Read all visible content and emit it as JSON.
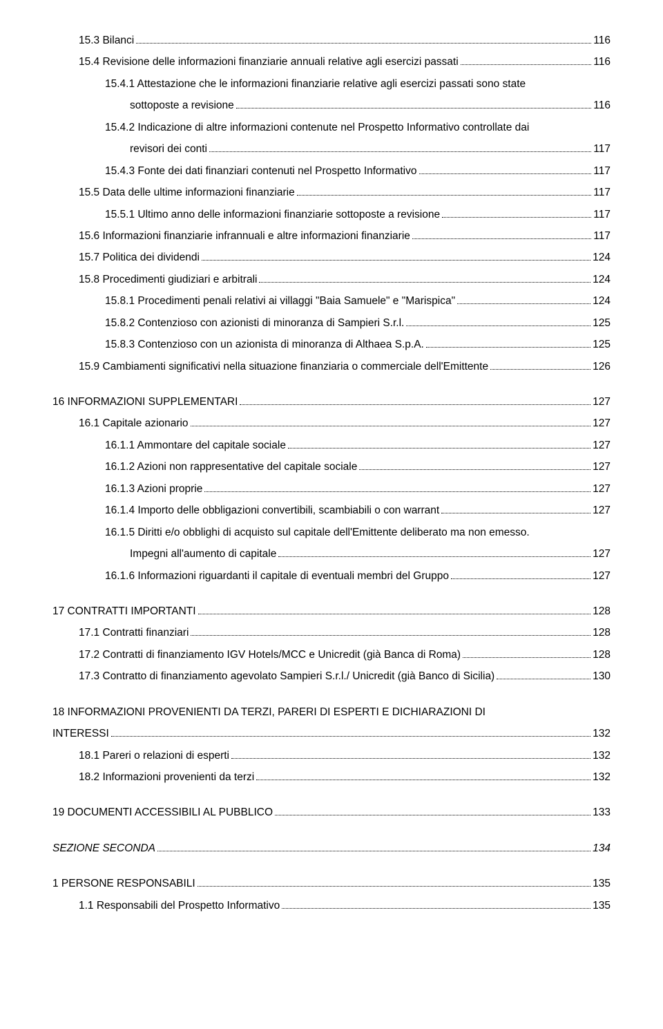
{
  "toc": [
    {
      "level": "l2",
      "label": "15.3  Bilanci",
      "page": "116"
    },
    {
      "level": "l2",
      "label": "15.4  Revisione delle informazioni finanziarie annuali relative agli esercizi passati",
      "page": "116"
    },
    {
      "level": "l3",
      "label": "15.4.1 Attestazione che le informazioni finanziarie relative agli esercizi passati sono state",
      "cont": true
    },
    {
      "level": "l3x",
      "label": "sottoposte a revisione",
      "page": "116"
    },
    {
      "level": "l3",
      "label": "15.4.2 Indicazione di altre informazioni contenute nel Prospetto Informativo controllate dai",
      "cont": true
    },
    {
      "level": "l3x",
      "label": "revisori dei conti",
      "page": "117"
    },
    {
      "level": "l3",
      "label": "15.4.3 Fonte dei dati finanziari contenuti nel Prospetto Informativo",
      "page": "117"
    },
    {
      "level": "l2",
      "label": "15.5  Data delle ultime informazioni finanziarie",
      "page": "117"
    },
    {
      "level": "l3",
      "label": "15.5.1 Ultimo anno delle informazioni finanziarie sottoposte a revisione",
      "page": "117"
    },
    {
      "level": "l2",
      "label": "15.6  Informazioni finanziarie infrannuali e altre informazioni finanziarie",
      "page": "117"
    },
    {
      "level": "l2",
      "label": "15.7  Politica dei dividendi",
      "page": "124"
    },
    {
      "level": "l2",
      "label": "15.8  Procedimenti giudiziari e arbitrali",
      "page": "124"
    },
    {
      "level": "l3",
      "label": "15.8.1 Procedimenti penali relativi ai villaggi \"Baia Samuele\" e \"Marispica\"",
      "page": "124"
    },
    {
      "level": "l3",
      "label": "15.8.2 Contenzioso con azionisti di minoranza di Sampieri S.r.l.",
      "page": "125"
    },
    {
      "level": "l3",
      "label": "15.8.3 Contenzioso con un azionista di minoranza di Althaea S.p.A.",
      "page": "125"
    },
    {
      "level": "l2",
      "label": "15.9  Cambiamenti significativi nella situazione finanziaria o commerciale dell'Emittente",
      "page": "126"
    },
    {
      "gap": true
    },
    {
      "level": "l1",
      "label": "16    INFORMAZIONI SUPPLEMENTARI",
      "page": "127"
    },
    {
      "level": "l2",
      "label": "16.1  Capitale azionario",
      "page": "127"
    },
    {
      "level": "l3",
      "label": "16.1.1 Ammontare del capitale sociale",
      "page": "127"
    },
    {
      "level": "l3",
      "label": "16.1.2 Azioni non rappresentative del capitale sociale",
      "page": "127"
    },
    {
      "level": "l3",
      "label": "16.1.3 Azioni proprie",
      "page": "127"
    },
    {
      "level": "l3",
      "label": "16.1.4 Importo delle obbligazioni convertibili, scambiabili o con warrant",
      "page": "127"
    },
    {
      "level": "l3",
      "label": "16.1.5 Diritti e/o obblighi di acquisto sul capitale dell'Emittente deliberato ma non emesso.",
      "cont": true
    },
    {
      "level": "l3x",
      "label": "Impegni all'aumento di capitale",
      "page": "127"
    },
    {
      "level": "l3",
      "label": "16.1.6 Informazioni riguardanti il capitale di eventuali membri del Gruppo",
      "page": "127"
    },
    {
      "gap": true
    },
    {
      "level": "l1",
      "label": "17    CONTRATTI IMPORTANTI",
      "page": "128"
    },
    {
      "level": "l2",
      "label": "17.1  Contratti finanziari",
      "page": "128"
    },
    {
      "level": "l2",
      "label": "17.2  Contratti di finanziamento IGV Hotels/MCC e Unicredit (già Banca di Roma)",
      "page": "128"
    },
    {
      "level": "l2",
      "label": "17.3  Contratto di finanziamento agevolato Sampieri S.r.l./ Unicredit (già Banco di Sicilia)",
      "page": "130"
    },
    {
      "gap": true
    },
    {
      "level": "l1",
      "label": "18    INFORMAZIONI PROVENIENTI DA TERZI, PARERI DI ESPERTI E DICHIARAZIONI DI",
      "cont": true
    },
    {
      "level": "l1",
      "label": "INTERESSI",
      "page": "132"
    },
    {
      "level": "l2",
      "label": "18.1  Pareri o relazioni di esperti",
      "page": "132"
    },
    {
      "level": "l2",
      "label": "18.2  Informazioni provenienti da terzi",
      "page": "132"
    },
    {
      "gap": true
    },
    {
      "level": "l1",
      "label": "19    DOCUMENTI ACCESSIBILI AL PUBBLICO",
      "page": "133"
    },
    {
      "gap": true
    },
    {
      "level": "l1",
      "label": "SEZIONE SECONDA",
      "page": "134",
      "italic": true
    },
    {
      "gap": true
    },
    {
      "level": "l1",
      "label": "1     PERSONE RESPONSABILI",
      "page": "135"
    },
    {
      "level": "l2",
      "label": "1.1   Responsabili del Prospetto Informativo",
      "page": "135"
    }
  ]
}
